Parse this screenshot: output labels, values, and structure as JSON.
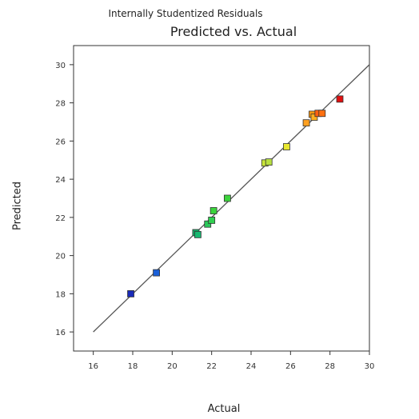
{
  "chart_data": {
    "type": "scatter",
    "subtitle": "Internally Studentized Residuals",
    "title": "Predicted vs. Actual",
    "xlabel": "Actual",
    "ylabel": "Predicted",
    "xlim": [
      15,
      30
    ],
    "ylim": [
      15,
      31
    ],
    "xticks": [
      "16",
      "18",
      "20",
      "22",
      "24",
      "26",
      "28",
      "30"
    ],
    "yticks": [
      "16",
      "18",
      "20",
      "22",
      "24",
      "26",
      "28",
      "30"
    ],
    "reference_line": [
      [
        16,
        16
      ],
      [
        30,
        30
      ]
    ],
    "points": [
      {
        "x": 17.9,
        "y": 18.0,
        "color": "#1a2bb8"
      },
      {
        "x": 19.2,
        "y": 19.1,
        "color": "#1a5fd8"
      },
      {
        "x": 21.2,
        "y": 21.2,
        "color": "#16a866"
      },
      {
        "x": 21.3,
        "y": 21.1,
        "color": "#16b870"
      },
      {
        "x": 21.8,
        "y": 21.65,
        "color": "#2ac85a"
      },
      {
        "x": 22.0,
        "y": 21.85,
        "color": "#30d050"
      },
      {
        "x": 22.1,
        "y": 22.35,
        "color": "#3ad43c"
      },
      {
        "x": 22.8,
        "y": 23.0,
        "color": "#3cd43c"
      },
      {
        "x": 24.7,
        "y": 24.85,
        "color": "#c8e43a"
      },
      {
        "x": 24.9,
        "y": 24.9,
        "color": "#b8e040"
      },
      {
        "x": 25.8,
        "y": 25.7,
        "color": "#e8e830"
      },
      {
        "x": 26.8,
        "y": 26.95,
        "color": "#ffa020"
      },
      {
        "x": 27.1,
        "y": 27.4,
        "color": "#ff9a10"
      },
      {
        "x": 27.2,
        "y": 27.25,
        "color": "#ffb020"
      },
      {
        "x": 27.4,
        "y": 27.45,
        "color": "#ff6010"
      },
      {
        "x": 27.6,
        "y": 27.45,
        "color": "#ff7010"
      },
      {
        "x": 28.5,
        "y": 28.2,
        "color": "#e01010"
      }
    ]
  }
}
